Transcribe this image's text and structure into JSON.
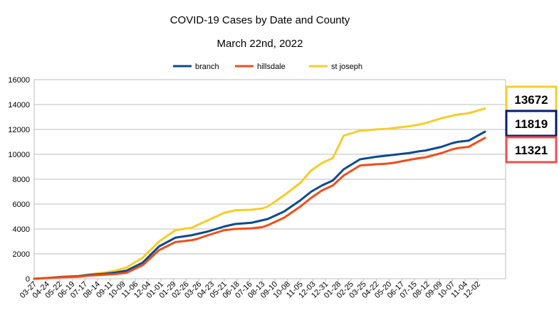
{
  "chart_data": {
    "type": "line",
    "title": "COVID-19 Cases by Date and County",
    "subtitle": "March 22nd, 2022",
    "xlabel": "",
    "ylabel": "",
    "ylim": [
      0,
      16000
    ],
    "yticks": [
      0,
      2000,
      4000,
      6000,
      8000,
      10000,
      12000,
      14000,
      16000
    ],
    "grid": true,
    "legend": "top-center",
    "x_tick_labels": [
      "03-27",
      "04-24",
      "05-22",
      "06-19",
      "07-17",
      "08-14",
      "09-11",
      "10-09",
      "11-06",
      "12-04",
      "01-01",
      "01-29",
      "02-26",
      "03-26",
      "04-23",
      "05-21",
      "06-18",
      "07-16",
      "08-13",
      "09-10",
      "10-08",
      "11-05",
      "12-03",
      "12-31",
      "01-28",
      "02-25",
      "03-25",
      "04-22",
      "05-20",
      "06-17",
      "07-15",
      "08-12",
      "09-09",
      "10-07",
      "11-04",
      "12-02"
    ],
    "x_points": [
      0,
      3,
      5,
      8,
      10,
      13,
      15,
      17,
      20,
      23,
      26,
      29,
      30,
      32,
      35,
      37,
      40,
      42,
      43,
      46,
      49,
      51,
      53,
      55,
      57,
      60,
      63,
      65,
      66,
      69,
      71,
      72,
      75,
      77,
      78,
      80,
      83
    ],
    "series": [
      {
        "name": "branch",
        "color": "#0c4a8c",
        "values": [
          0,
          80,
          150,
          200,
          300,
          400,
          500,
          650,
          1300,
          2600,
          3300,
          3500,
          3600,
          3800,
          4200,
          4400,
          4500,
          4700,
          4800,
          5400,
          6300,
          7000,
          7500,
          7900,
          8800,
          9600,
          9800,
          9900,
          9950,
          10100,
          10250,
          10300,
          10600,
          10900,
          11000,
          11100,
          11819
        ]
      },
      {
        "name": "hillsdale",
        "color": "#f04d1a",
        "values": [
          0,
          70,
          120,
          160,
          250,
          320,
          380,
          480,
          1100,
          2300,
          2950,
          3100,
          3200,
          3500,
          3900,
          4000,
          4050,
          4150,
          4300,
          4900,
          5800,
          6500,
          7100,
          7500,
          8300,
          9100,
          9200,
          9250,
          9300,
          9550,
          9700,
          9750,
          10100,
          10400,
          10500,
          10600,
          11321
        ]
      },
      {
        "name": "st joseph",
        "color": "#f6cd2a",
        "values": [
          0,
          80,
          150,
          200,
          350,
          500,
          650,
          900,
          1700,
          3000,
          3900,
          4100,
          4300,
          4700,
          5300,
          5500,
          5550,
          5650,
          5800,
          6700,
          7700,
          8700,
          9300,
          9700,
          11500,
          11900,
          12000,
          12050,
          12100,
          12250,
          12400,
          12500,
          12900,
          13100,
          13200,
          13300,
          13672
        ]
      }
    ],
    "callouts": [
      {
        "series": "st joseph",
        "value": "13672",
        "border": "#f6cd2a"
      },
      {
        "series": "branch",
        "value": "11819",
        "border": "#001d6e"
      },
      {
        "series": "hillsdale",
        "value": "11321",
        "border": "#f04d4d"
      }
    ]
  }
}
